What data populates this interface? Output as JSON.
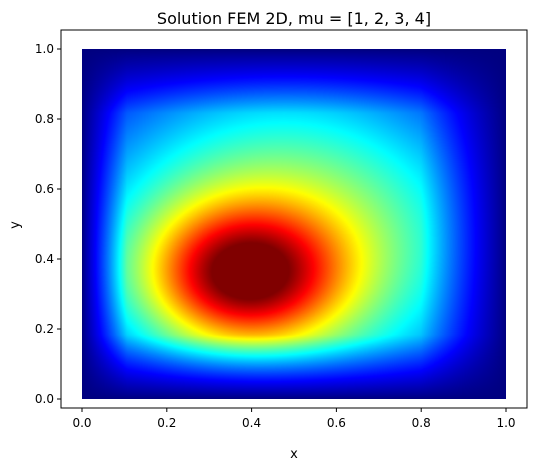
{
  "chart_data": {
    "type": "heatmap",
    "title": "Solution FEM 2D, mu = [1, 2, 3, 4]",
    "xlabel": "x",
    "ylabel": "y",
    "xlim": [
      0.0,
      1.0
    ],
    "ylim": [
      0.0,
      1.0
    ],
    "x_ticks": [
      "0.0",
      "0.2",
      "0.4",
      "0.6",
      "0.8",
      "1.0"
    ],
    "y_ticks": [
      "0.0",
      "0.2",
      "0.4",
      "0.6",
      "0.8",
      "1.0"
    ],
    "colormap": "jet",
    "grid": false,
    "legend": "none",
    "boundary_value": 0.0,
    "peak": {
      "x": 0.38,
      "y": 0.35,
      "value": 1.0
    },
    "field_samples": [
      {
        "x": 0.38,
        "y": 0.35,
        "value": 1.0
      },
      {
        "x": 0.6,
        "y": 0.35,
        "value": 0.8
      },
      {
        "x": 0.4,
        "y": 0.55,
        "value": 0.72
      },
      {
        "x": 0.6,
        "y": 0.6,
        "value": 0.62
      },
      {
        "x": 0.2,
        "y": 0.35,
        "value": 0.65
      },
      {
        "x": 0.5,
        "y": 0.75,
        "value": 0.45
      },
      {
        "x": 0.8,
        "y": 0.4,
        "value": 0.45
      },
      {
        "x": 0.4,
        "y": 0.15,
        "value": 0.45
      },
      {
        "x": 0.1,
        "y": 0.35,
        "value": 0.35
      },
      {
        "x": 0.5,
        "y": 0.9,
        "value": 0.18
      },
      {
        "x": 0.95,
        "y": 0.5,
        "value": 0.1
      }
    ]
  }
}
